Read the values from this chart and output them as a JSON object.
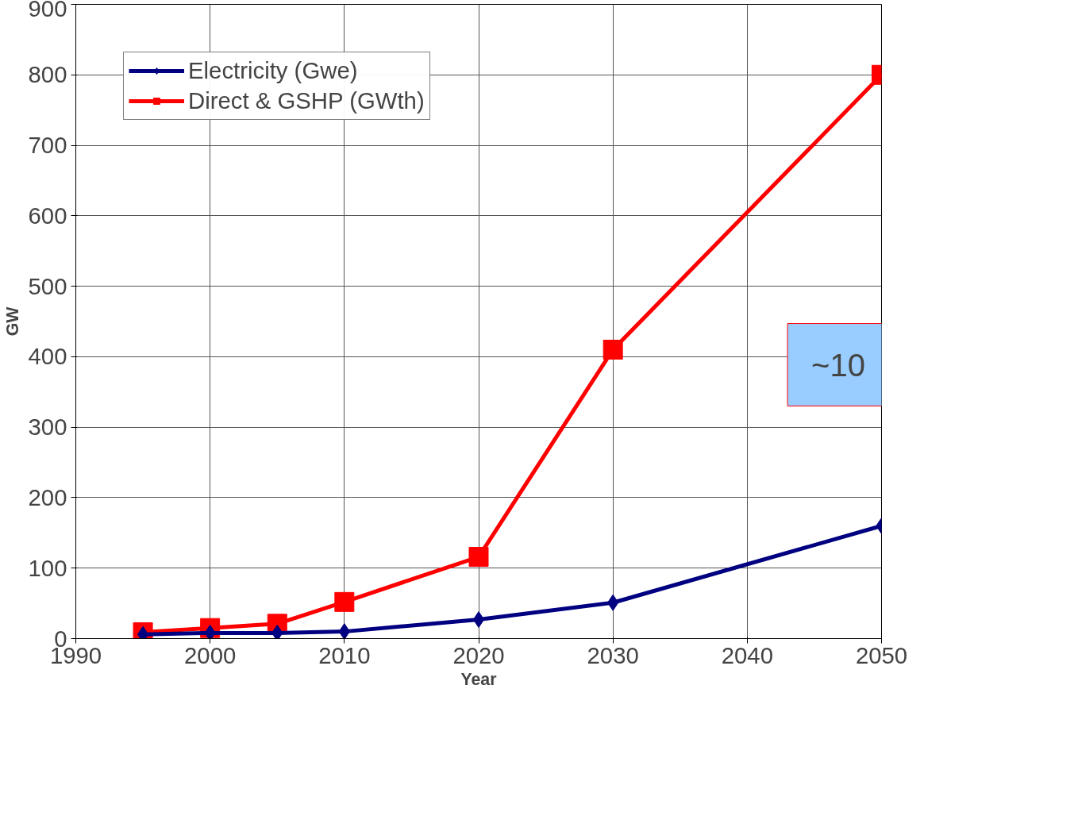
{
  "chart_data": {
    "type": "line",
    "xlabel": "Year",
    "ylabel": "GW",
    "x": [
      1995,
      2000,
      2005,
      2010,
      2020,
      2030,
      2050
    ],
    "series": [
      {
        "name": "Electricity (Gwe)",
        "color": "#000080",
        "marker": "diamond",
        "values": [
          6,
          8,
          8,
          10,
          27,
          51,
          160
        ]
      },
      {
        "name": "Direct & GSHP (GWth)",
        "color": "#ff0000",
        "marker": "square",
        "values": [
          9,
          15,
          21,
          52,
          116,
          410,
          800
        ]
      }
    ],
    "xlim": [
      1990,
      2050
    ],
    "xticks": [
      1990,
      2000,
      2010,
      2020,
      2030,
      2040,
      2050
    ],
    "ylim": [
      0,
      900
    ],
    "yticks": [
      0,
      100,
      200,
      300,
      400,
      500,
      600,
      700,
      800,
      900
    ],
    "grid": true,
    "legend": "top left",
    "line_style": "solid",
    "annotations": [
      "~10"
    ]
  }
}
